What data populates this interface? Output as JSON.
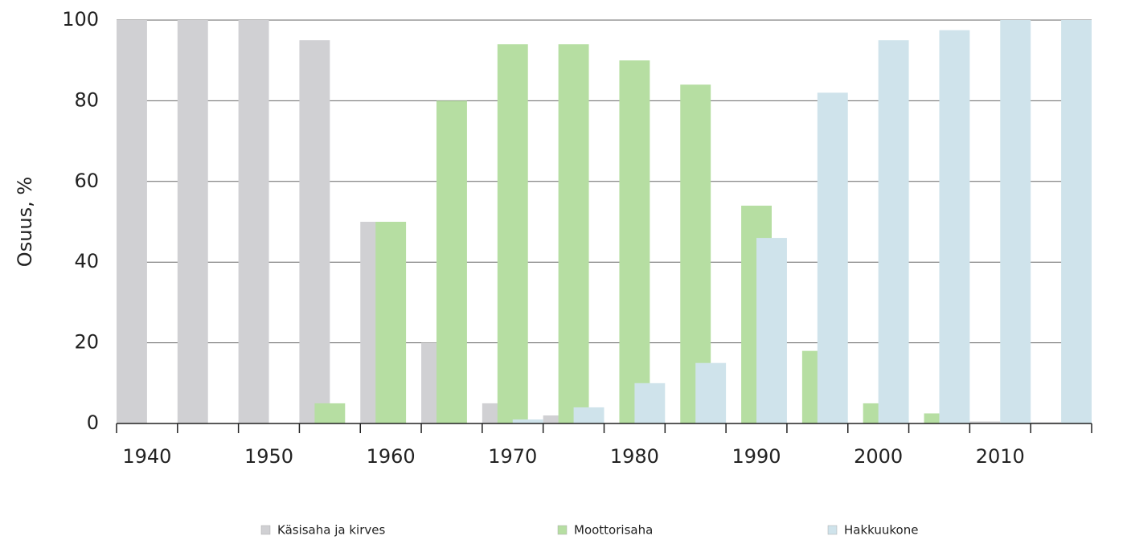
{
  "chart_data": {
    "type": "bar",
    "ylabel": "Osuus, %",
    "categories": [
      "1940",
      null,
      "1950",
      null,
      "1960",
      null,
      "1970",
      null,
      "1980",
      null,
      "1990",
      null,
      "2000",
      null,
      "2010",
      null
    ],
    "series": [
      {
        "name": "Käsisaha ja kirves",
        "color": "#d0d0d3",
        "values": [
          100,
          100,
          100,
          95,
          50,
          20,
          5,
          2,
          0,
          0,
          0,
          0,
          0,
          0,
          0.5,
          0.3
        ]
      },
      {
        "name": "Moottorisaha",
        "color": "#b6dea2",
        "values": [
          0,
          0,
          0,
          5,
          50,
          80,
          94,
          94,
          90,
          84,
          54,
          18,
          5,
          2.5,
          0,
          0
        ]
      },
      {
        "name": "Hakkuukone",
        "color": "#cfe3eb",
        "values": [
          0,
          0,
          0,
          0,
          0,
          0,
          1,
          4,
          10,
          15,
          46,
          82,
          95,
          97.5,
          100,
          100
        ]
      }
    ],
    "ylim": [
      0,
      100
    ],
    "yticks": [
      0,
      20,
      40,
      60,
      80,
      100
    ],
    "grid": true,
    "legend": "bottom"
  }
}
